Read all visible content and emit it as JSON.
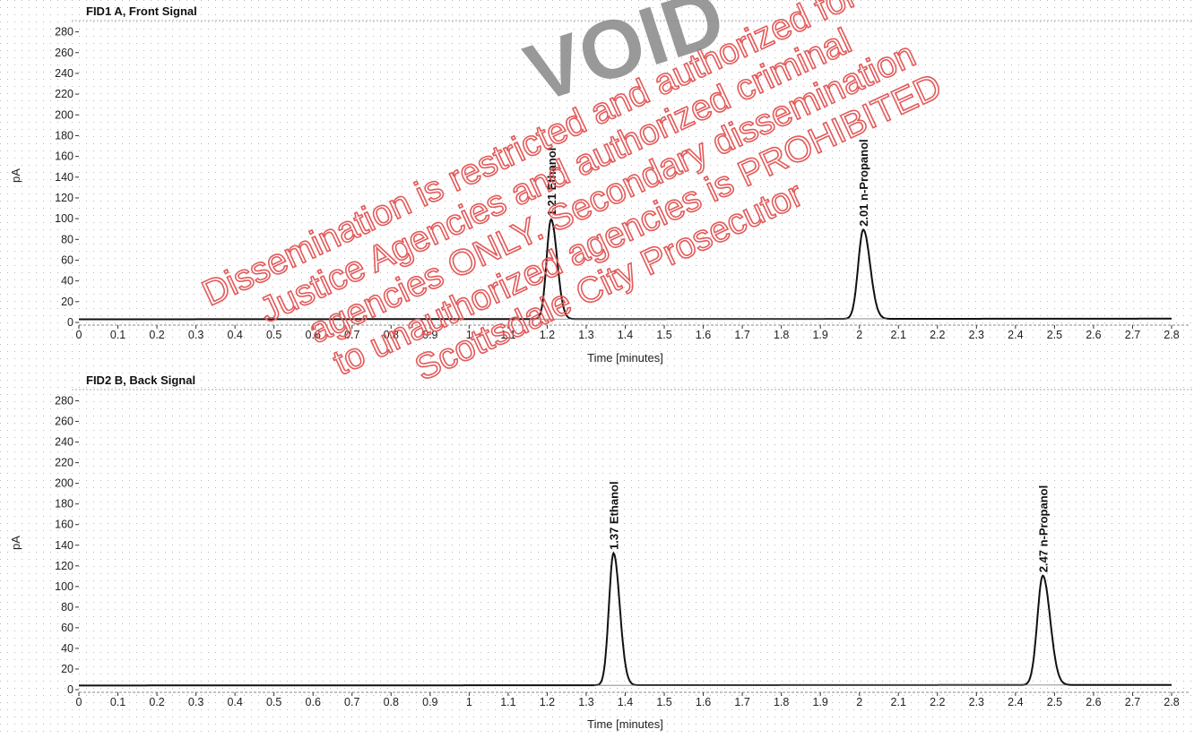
{
  "chart_data": [
    {
      "type": "line",
      "title": "FID1 A, Front Signal",
      "xlabel": "Time [minutes]",
      "ylabel": "pA",
      "xlim": [
        0,
        2.8
      ],
      "ylim": [
        0,
        290
      ],
      "x_ticks": [
        "0",
        "0.1",
        "0.2",
        "0.3",
        "0.4",
        "0.5",
        "0.6",
        "0.7",
        "0.8",
        "0.9",
        "1",
        "1.1",
        "1.2",
        "1.3",
        "1.4",
        "1.5",
        "1.6",
        "1.7",
        "1.8",
        "1.9",
        "2",
        "2.1",
        "2.2",
        "2.3",
        "2.4",
        "2.5",
        "2.6",
        "2.7",
        "2.8"
      ],
      "y_ticks": [
        "0",
        "20",
        "40",
        "60",
        "80",
        "100",
        "120",
        "140",
        "160",
        "180",
        "200",
        "220",
        "240",
        "260",
        "280"
      ],
      "baseline": 3,
      "peaks": [
        {
          "time": 1.21,
          "height": 96,
          "name": "Ethanol",
          "label": "1.21  Ethanol"
        },
        {
          "time": 2.01,
          "height": 86,
          "name": "n-Propanol",
          "label": "2.01  n-Propanol"
        }
      ],
      "grid": true
    },
    {
      "type": "line",
      "title": "FID2 B, Back Signal",
      "xlabel": "Time [minutes]",
      "ylabel": "pA",
      "xlim": [
        0,
        2.8
      ],
      "ylim": [
        0,
        290
      ],
      "x_ticks": [
        "0",
        "0.1",
        "0.2",
        "0.3",
        "0.4",
        "0.5",
        "0.6",
        "0.7",
        "0.8",
        "0.9",
        "1",
        "1.1",
        "1.2",
        "1.3",
        "1.4",
        "1.5",
        "1.6",
        "1.7",
        "1.8",
        "1.9",
        "2",
        "2.1",
        "2.2",
        "2.3",
        "2.4",
        "2.5",
        "2.6",
        "2.7",
        "2.8"
      ],
      "y_ticks": [
        "0",
        "20",
        "40",
        "60",
        "80",
        "100",
        "120",
        "140",
        "160",
        "180",
        "200",
        "220",
        "240",
        "260",
        "280"
      ],
      "baseline": 4,
      "peaks": [
        {
          "time": 1.37,
          "height": 128,
          "name": "Ethanol",
          "label": "1.37  Ethanol"
        },
        {
          "time": 2.47,
          "height": 106,
          "name": "n-Propanol",
          "label": "2.47  n-Propanol"
        }
      ],
      "grid": true
    }
  ],
  "watermark": {
    "stamp": "VOID",
    "lines": [
      "Dissemination is restricted and authorized for",
      "Justice Agencies and authorized criminal",
      "agencies ONLY. Secondary dissemination",
      "to unauthorized agencies is PROHIBITED",
      "Scottsdale City Prosecutor"
    ],
    "color": "#e35a5a"
  }
}
